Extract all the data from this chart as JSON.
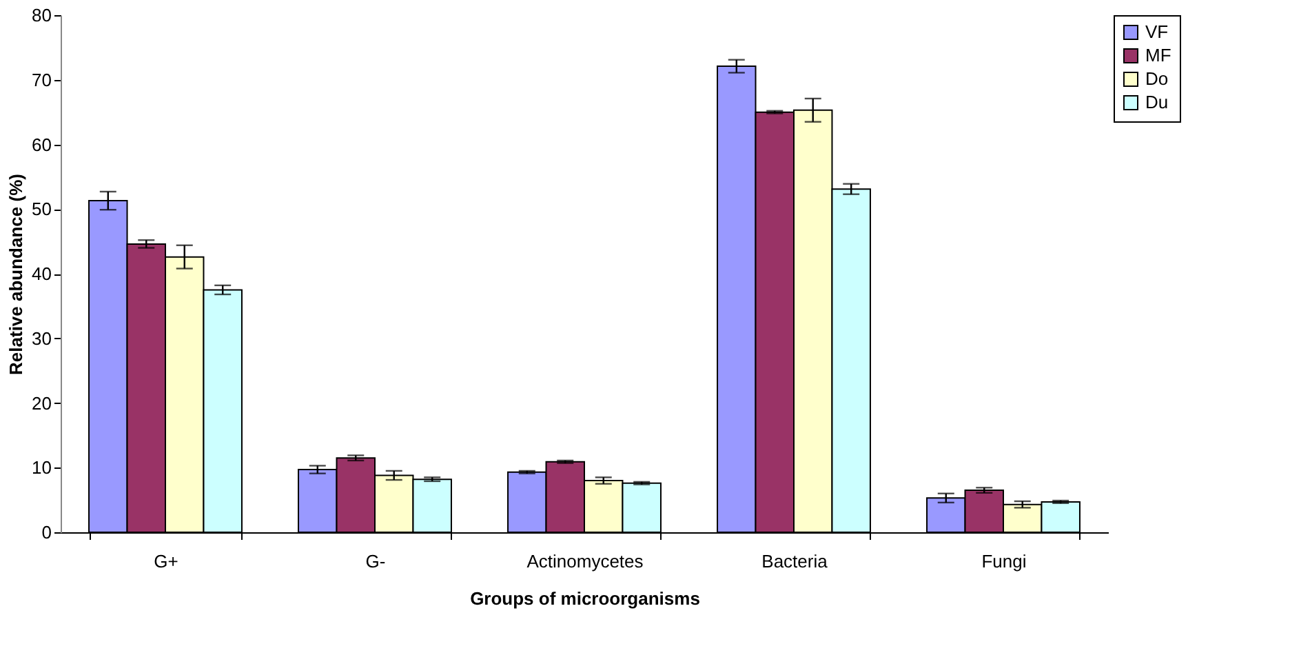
{
  "chart_data": {
    "type": "bar",
    "xlabel": "Groups of microorganisms",
    "ylabel": "Relative abundance (%)",
    "categories": [
      "G+",
      "G-",
      "Actinomycetes",
      "Bacteria",
      "Fungi"
    ],
    "series": [
      {
        "name": "VF",
        "color": "#9999ff",
        "values": [
          51.3,
          9.7,
          9.3,
          72.1,
          5.3
        ],
        "errors": [
          1.4,
          0.6,
          0.2,
          1.0,
          0.7
        ]
      },
      {
        "name": "MF",
        "color": "#993366",
        "values": [
          44.6,
          11.5,
          10.9,
          65.0,
          6.5
        ],
        "errors": [
          0.6,
          0.4,
          0.2,
          0.2,
          0.4
        ]
      },
      {
        "name": "Do",
        "color": "#ffffcc",
        "values": [
          42.6,
          8.8,
          8.0,
          65.3,
          4.3
        ],
        "errors": [
          1.8,
          0.7,
          0.5,
          1.8,
          0.5
        ]
      },
      {
        "name": "Du",
        "color": "#ccffff",
        "values": [
          37.5,
          8.2,
          7.6,
          53.1,
          4.7
        ],
        "errors": [
          0.7,
          0.3,
          0.2,
          0.8,
          0.2
        ]
      }
    ],
    "ylim": [
      0,
      80
    ],
    "yticks": [
      0,
      10,
      20,
      30,
      40,
      50,
      60,
      70,
      80
    ],
    "grid": false,
    "legend": "right"
  }
}
